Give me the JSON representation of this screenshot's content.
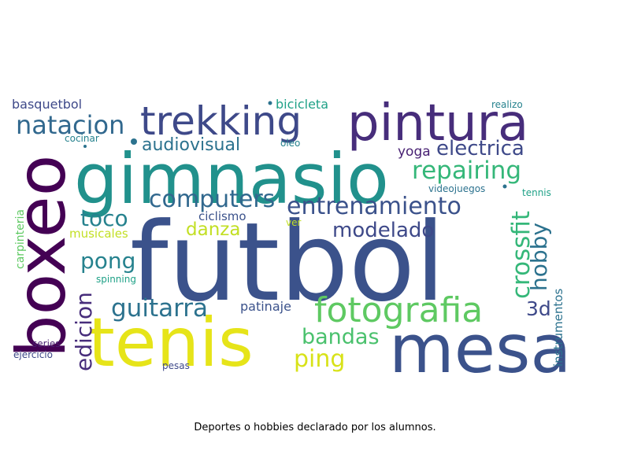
{
  "caption": "Deportes o hobbies declarado por los alumnos.",
  "words": [
    {
      "text": "futbol",
      "color": "#3b528b",
      "rotated": false
    },
    {
      "text": "gimnasio",
      "color": "#21918c",
      "rotated": false
    },
    {
      "text": "tenis",
      "color": "#e6e419",
      "rotated": false
    },
    {
      "text": "mesa",
      "color": "#3b528b",
      "rotated": false
    },
    {
      "text": "boxeo",
      "color": "#440154",
      "rotated": true
    },
    {
      "text": "pintura",
      "color": "#472d7b",
      "rotated": false
    },
    {
      "text": "trekking",
      "color": "#3e4989",
      "rotated": false
    },
    {
      "text": "fotografia",
      "color": "#5ec962",
      "rotated": false
    },
    {
      "text": "natacion",
      "color": "#31688e",
      "rotated": false
    },
    {
      "text": "repairing",
      "color": "#35b779",
      "rotated": false
    },
    {
      "text": "electrica",
      "color": "#3e4989",
      "rotated": false
    },
    {
      "text": "computers",
      "color": "#31688e",
      "rotated": false
    },
    {
      "text": "entrenamiento",
      "color": "#3b528b",
      "rotated": false
    },
    {
      "text": "audiovisual",
      "color": "#2c728e",
      "rotated": false
    },
    {
      "text": "crossfit",
      "color": "#35b779",
      "rotated": true
    },
    {
      "text": "hobby",
      "color": "#2c728e",
      "rotated": true
    },
    {
      "text": "modelado",
      "color": "#3e4989",
      "rotated": false
    },
    {
      "text": "toco",
      "color": "#26828e",
      "rotated": false
    },
    {
      "text": "pong",
      "color": "#26828e",
      "rotated": false
    },
    {
      "text": "danza",
      "color": "#c2df23",
      "rotated": false
    },
    {
      "text": "guitarra",
      "color": "#2c728e",
      "rotated": false
    },
    {
      "text": "edicion",
      "color": "#472d7b",
      "rotated": true
    },
    {
      "text": "bandas",
      "color": "#4ac16d",
      "rotated": false
    },
    {
      "text": "ping",
      "color": "#d8e219",
      "rotated": false
    },
    {
      "text": "3d",
      "color": "#3e4989",
      "rotated": false
    },
    {
      "text": "yoga",
      "color": "#482173",
      "rotated": false
    },
    {
      "text": "bicicleta",
      "color": "#1fa187",
      "rotated": false
    },
    {
      "text": "basquetbol",
      "color": "#3e4989",
      "rotated": false
    },
    {
      "text": "realizo",
      "color": "#26828e",
      "rotated": false
    },
    {
      "text": "cocinar",
      "color": "#26828e",
      "rotated": false
    },
    {
      "text": "oleo",
      "color": "#26828e",
      "rotated": false
    },
    {
      "text": "ciclismo",
      "color": "#3b528b",
      "rotated": false
    },
    {
      "text": "musicales",
      "color": "#c2df23",
      "rotated": false
    },
    {
      "text": "ver",
      "color": "#c2df23",
      "rotated": false
    },
    {
      "text": "patinaje",
      "color": "#3b528b",
      "rotated": false
    },
    {
      "text": "videojuegos",
      "color": "#2c728e",
      "rotated": false
    },
    {
      "text": "tennis",
      "color": "#1fa187",
      "rotated": false
    },
    {
      "text": "carpinteria",
      "color": "#5ec962",
      "rotated": true
    },
    {
      "text": "spinning",
      "color": "#1fa187",
      "rotated": false
    },
    {
      "text": "instrumentos",
      "color": "#2c728e",
      "rotated": true
    },
    {
      "text": "series",
      "color": "#481f70",
      "rotated": false
    },
    {
      "text": "ejercicio",
      "color": "#3e4989",
      "rotated": false
    },
    {
      "text": "pesas",
      "color": "#3e4989",
      "rotated": false
    }
  ],
  "dots": [
    {
      "color": "#2c728e"
    },
    {
      "color": "#2c728e"
    },
    {
      "color": "#2c728e"
    },
    {
      "color": "#2c728e"
    }
  ]
}
